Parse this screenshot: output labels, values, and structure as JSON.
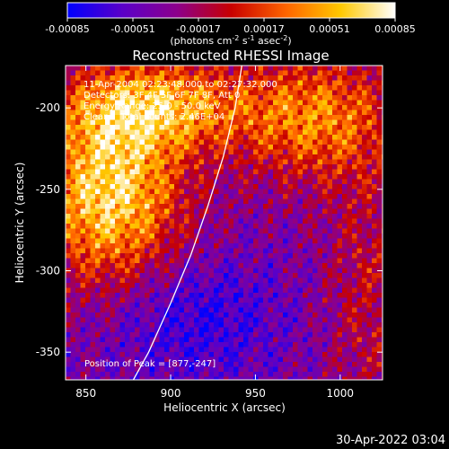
{
  "colorbar": {
    "tick_labels": [
      "-0.00085",
      "-0.00051",
      "-0.00017",
      "0.00017",
      "0.00051",
      "0.00085"
    ],
    "tick_values": [
      -0.00085,
      -0.00051,
      -0.00017,
      0.00017,
      0.00051,
      0.00085
    ],
    "range": [
      -0.00085,
      0.00085
    ],
    "units_prefix": "(photons cm",
    "units_exp1": "-2",
    "units_mid1": " s",
    "units_exp2": "-1",
    "units_mid2": " asec",
    "units_exp3": "-2",
    "units_suffix": ")",
    "color_stops": [
      "#0000ff",
      "#5a00c8",
      "#8c008c",
      "#c80000",
      "#ff6400",
      "#ffc800",
      "#ffffff"
    ]
  },
  "chart_data": {
    "type": "heatmap",
    "title": "Reconstructed RHESSI Image",
    "xlabel": "Heliocentric X (arcsec)",
    "ylabel": "Heliocentric Y (arcsec)",
    "xlim": [
      838,
      1025
    ],
    "ylim": [
      -367,
      -174
    ],
    "x_ticks": [
      850,
      900,
      950,
      1000
    ],
    "y_ticks": [
      -200,
      -250,
      -300,
      -350
    ],
    "peak": [
      877,
      -247
    ],
    "limb_curve": [
      [
        878,
        -367
      ],
      [
        887,
        -350
      ],
      [
        900,
        -320
      ],
      [
        912,
        -290
      ],
      [
        922,
        -260
      ],
      [
        931,
        -230
      ],
      [
        938,
        -200
      ],
      [
        942,
        -174
      ]
    ],
    "annotations": {
      "line1": "11-Apr-2004 02:23:48.000 to 02:27:32.000",
      "line2": "Detectors: 3F 4F 5F 6F 7F 8F, Att 0",
      "line3": "Energy Range: 25.0 - 50.0 keV",
      "line4": "Clean    Total counts: 2.46E+04",
      "peak_label": "Position of Peak = [877,-247]"
    }
  },
  "footer": {
    "timestamp": "30-Apr-2022 03:04"
  }
}
